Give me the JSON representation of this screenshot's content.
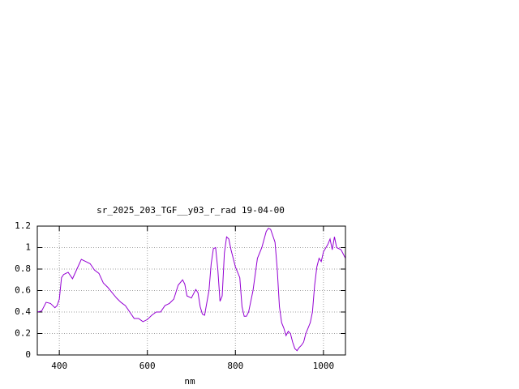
{
  "chart_data": {
    "type": "line",
    "title": "sr_2025_203_TGF__y03_r_rad 19-04-00",
    "xlabel": "nm",
    "grid": true,
    "xlim": [
      350,
      1050
    ],
    "xticks": [
      400,
      600,
      800,
      1000
    ],
    "ylim": [
      0,
      1.2
    ],
    "yticks": [
      0,
      0.2,
      0.4,
      0.6,
      0.8,
      1,
      1.2
    ],
    "series": [
      {
        "name": "sr_2025_203_TGF__y03_r_rad",
        "color": "#9400d3",
        "x": [
          350,
          360,
          370,
          380,
          390,
          395,
          400,
          405,
          410,
          420,
          430,
          440,
          450,
          460,
          470,
          480,
          490,
          500,
          510,
          520,
          530,
          540,
          550,
          560,
          570,
          580,
          590,
          600,
          610,
          620,
          630,
          640,
          650,
          660,
          670,
          680,
          685,
          690,
          700,
          710,
          715,
          720,
          725,
          730,
          740,
          745,
          750,
          755,
          760,
          765,
          770,
          775,
          780,
          785,
          790,
          800,
          810,
          815,
          820,
          825,
          830,
          840,
          850,
          860,
          870,
          875,
          880,
          890,
          895,
          900,
          905,
          910,
          915,
          920,
          925,
          930,
          935,
          940,
          945,
          950,
          955,
          960,
          970,
          975,
          980,
          985,
          990,
          995,
          1000,
          1010,
          1015,
          1020,
          1025,
          1030,
          1040,
          1050
        ],
        "values": [
          0.4,
          0.41,
          0.49,
          0.48,
          0.44,
          0.46,
          0.52,
          0.72,
          0.75,
          0.77,
          0.71,
          0.8,
          0.89,
          0.87,
          0.85,
          0.79,
          0.76,
          0.67,
          0.63,
          0.58,
          0.53,
          0.49,
          0.46,
          0.4,
          0.34,
          0.34,
          0.31,
          0.33,
          0.37,
          0.4,
          0.4,
          0.46,
          0.48,
          0.52,
          0.65,
          0.7,
          0.66,
          0.55,
          0.53,
          0.61,
          0.58,
          0.45,
          0.38,
          0.37,
          0.6,
          0.85,
          0.99,
          1.0,
          0.8,
          0.5,
          0.55,
          0.95,
          1.1,
          1.08,
          0.98,
          0.82,
          0.72,
          0.45,
          0.36,
          0.36,
          0.4,
          0.6,
          0.9,
          1.0,
          1.15,
          1.18,
          1.17,
          1.05,
          0.8,
          0.45,
          0.3,
          0.25,
          0.18,
          0.22,
          0.2,
          0.12,
          0.06,
          0.04,
          0.07,
          0.09,
          0.12,
          0.2,
          0.3,
          0.4,
          0.65,
          0.82,
          0.9,
          0.87,
          0.96,
          1.03,
          1.08,
          0.98,
          1.1,
          1.0,
          0.98,
          0.9
        ]
      }
    ]
  }
}
